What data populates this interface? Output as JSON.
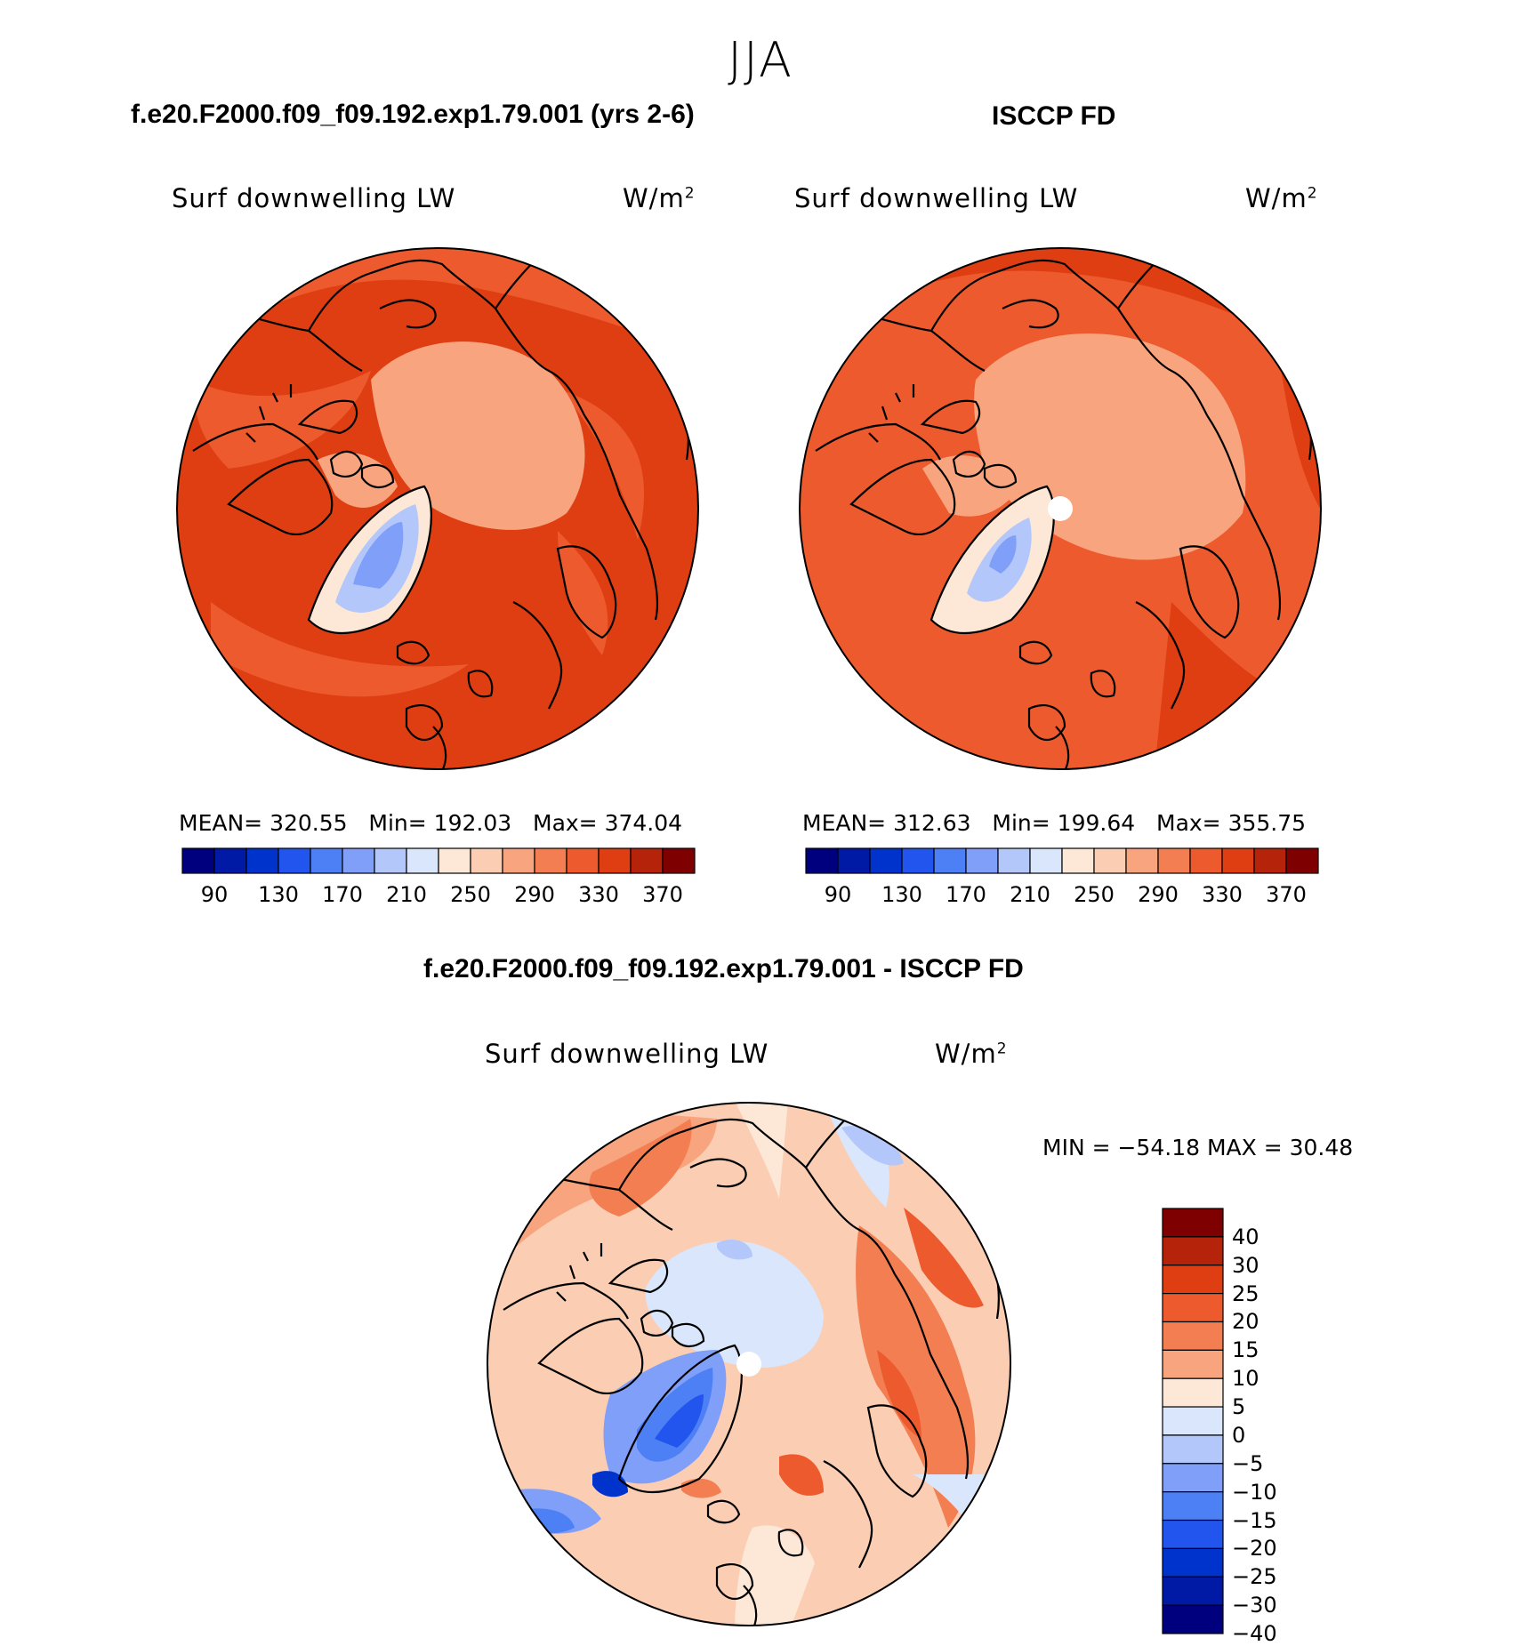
{
  "season": "JJA",
  "panels": [
    {
      "title": "f.e20.F2000.f09_f09.192.exp1.79.001 (yrs 2-6)",
      "variable": "Surf downwelling LW",
      "units": "W/m",
      "units_sup": "2",
      "stats": {
        "mean": "320.55",
        "min": "192.03",
        "max": "374.04"
      }
    },
    {
      "title": "ISCCP FD",
      "variable": "Surf downwelling LW",
      "units": "W/m",
      "units_sup": "2",
      "stats": {
        "mean": "312.63",
        "min": "199.64",
        "max": "355.75"
      }
    }
  ],
  "stat_labels": {
    "mean": "MEAN=",
    "min": "Min=",
    "max": "Max="
  },
  "colorbar_abs": {
    "colors": [
      "#00007f",
      "#001aa6",
      "#0033cc",
      "#2255ee",
      "#4d7ff5",
      "#809ff8",
      "#b3c7fb",
      "#d9e6fc",
      "#fde8d8",
      "#fbcdb3",
      "#f8a47f",
      "#f27e52",
      "#ec5a2e",
      "#de3e12",
      "#b5230a",
      "#7f0000"
    ],
    "ticks": [
      "90",
      "130",
      "170",
      "210",
      "250",
      "290",
      "330",
      "370"
    ]
  },
  "diff_panel": {
    "title": "f.e20.F2000.f09_f09.192.exp1.79.001 - ISCCP FD",
    "variable": "Surf downwelling LW",
    "units": "W/m",
    "units_sup": "2",
    "minmax_text": "MIN = −54.18 MAX =   30.48"
  },
  "colorbar_diff": {
    "colors": [
      "#7f0000",
      "#b5230a",
      "#de3e12",
      "#ec5a2e",
      "#f27e52",
      "#f8a47f",
      "#fde8d8",
      "#d9e6fc",
      "#b3c7fb",
      "#809ff8",
      "#4d7ff5",
      "#2255ee",
      "#0033cc",
      "#001aa6",
      "#00007f"
    ],
    "ticks": [
      "40",
      "30",
      "25",
      "20",
      "15",
      "10",
      "5",
      "0",
      "−5",
      "−10",
      "−15",
      "−20",
      "−25",
      "−30",
      "−40"
    ]
  }
}
